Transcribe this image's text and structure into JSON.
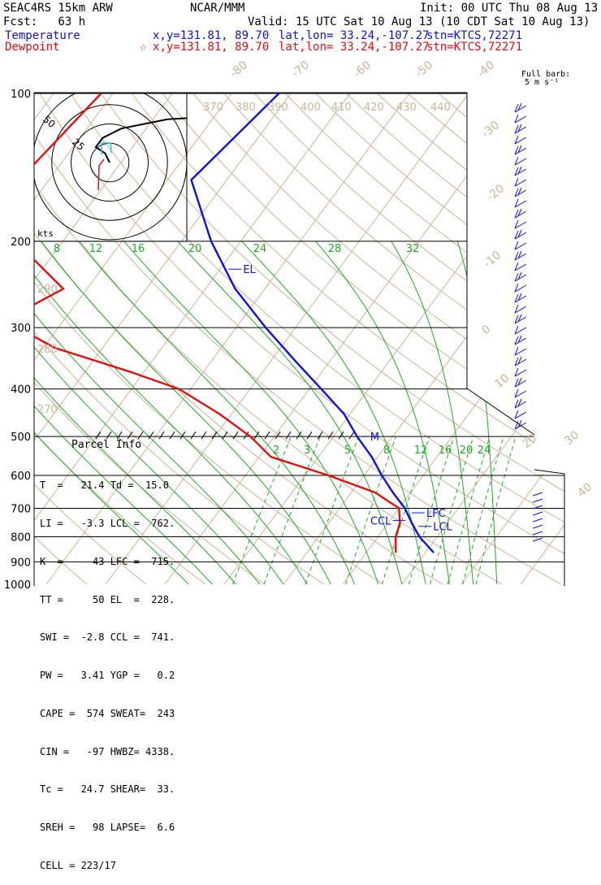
{
  "header": {
    "model": "SEAC4RS 15km ARW",
    "center": "NCAR/MMM",
    "init": "Init: 00 UTC Thu 08 Aug 13",
    "fcst": "Fcst:   63 h",
    "valid": "Valid: 15 UTC Sat 10 Aug 13 (10 CDT Sat 10 Aug 13)",
    "temp_label": "Temperature",
    "temp_xy": "x,y=131.81, 89.70",
    "temp_latlon": "lat,lon= 33.24,-107.27",
    "temp_stn": "stn=KTCS,72271",
    "dew_label": "Dewpoint",
    "dew_xy": "x,y=131.81, 89.70",
    "dew_latlon": "lat,lon= 33.24,-107.27",
    "dew_stn": "stn=KTCS,72271",
    "full_barb": "Full barb:",
    "barb_unit": "5 m s⁻¹",
    "kts": "kts",
    "star": "☆"
  },
  "colors": {
    "temperature": "#1010e0",
    "dewpoint": "#e01010",
    "dry_adiabat": "#c8b49a",
    "moist_adiabat": "#22aa22",
    "mixing_ratio": "#22aa22",
    "isobar": "#000000",
    "hodograph": "#000000",
    "hodo_cyan": "#30c0e0"
  },
  "parcel_info": {
    "title": "Parcel Info",
    "rows": [
      "T  =   21.4 Td =  15.0",
      "LI =   -3.3 LCL =  762.",
      "K  =     43 LFC =  715.",
      "TT =     50 EL  =  228.",
      "SWI =  -2.8 CCL =  741.",
      "PW =   3.41 YGP =   0.2",
      "CAPE =  574 SWEAT=  243",
      "CIN =   -97 HWBZ= 4338.",
      "Tc =   24.7 SHEAR=  33.",
      "SREH =   98 LAPSE=  6.6",
      "CELL = 223/17"
    ]
  },
  "chart_data": {
    "type": "line",
    "title": "SEAC4RS 15km ARW",
    "pressure_levels": [
      100,
      200,
      300,
      400,
      500,
      600,
      700,
      800,
      900,
      1000
    ],
    "pressure_labels": [
      "100",
      "200",
      "300",
      "400",
      "500",
      "600",
      "700",
      "800",
      "900",
      "1000"
    ],
    "isotherm_labels": [
      "-80",
      "-70",
      "-60",
      "-50",
      "-40",
      "-30",
      "-20",
      "-10",
      "0",
      "10",
      "20",
      "30",
      "40"
    ],
    "isotherm_values": [
      -80,
      -70,
      -60,
      -50,
      -40,
      -30,
      -20,
      -10,
      0,
      10,
      20,
      30,
      40
    ],
    "theta_labels": [
      "370",
      "380",
      "390",
      "400",
      "410",
      "420",
      "430",
      "440",
      "290",
      "280",
      "270"
    ],
    "mixing_ratio_upper_labels": [
      "8",
      "12",
      "16",
      "20",
      "24",
      "28",
      "32"
    ],
    "mixing_ratio_lower_labels": [
      "2",
      "3",
      "5",
      "8",
      "12",
      "16",
      "20",
      "24"
    ],
    "series": [
      {
        "name": "Temperature",
        "pressure": [
          100,
          150,
          200,
          250,
          300,
          350,
          400,
          450,
          500,
          550,
          600,
          650,
          700,
          750,
          800,
          862
        ],
        "temperature": [
          -62,
          -66,
          -55,
          -45,
          -35,
          -26,
          -18,
          -11,
          -6,
          -1,
          3,
          7,
          11,
          14,
          17,
          21.4
        ]
      },
      {
        "name": "Dewpoint",
        "pressure": [
          100,
          150,
          200,
          250,
          290,
          330,
          370,
          400,
          450,
          500,
          550,
          600,
          650,
          700,
          750,
          800,
          862
        ],
        "temperature": [
          -92,
          -95,
          -88,
          -74,
          -80,
          -68,
          -52,
          -42,
          -32,
          -24,
          -18,
          -6,
          4,
          10,
          12,
          13,
          15
        ]
      }
    ],
    "levels": [
      {
        "name": "EL",
        "pressure": 228
      },
      {
        "name": "LFC",
        "pressure": 715
      },
      {
        "name": "CCL",
        "pressure": 741
      },
      {
        "name": "LCL",
        "pressure": 762
      },
      {
        "name": "M",
        "pressure": 500
      }
    ],
    "hodograph": {
      "ring_labels": [
        "25",
        "50"
      ],
      "u_kts": [
        0,
        -2,
        -6,
        -3,
        5,
        25,
        48,
        55
      ],
      "v_kts": [
        0,
        6,
        10,
        16,
        22,
        28,
        30,
        28
      ]
    },
    "grid": false,
    "legend": "top-left"
  }
}
